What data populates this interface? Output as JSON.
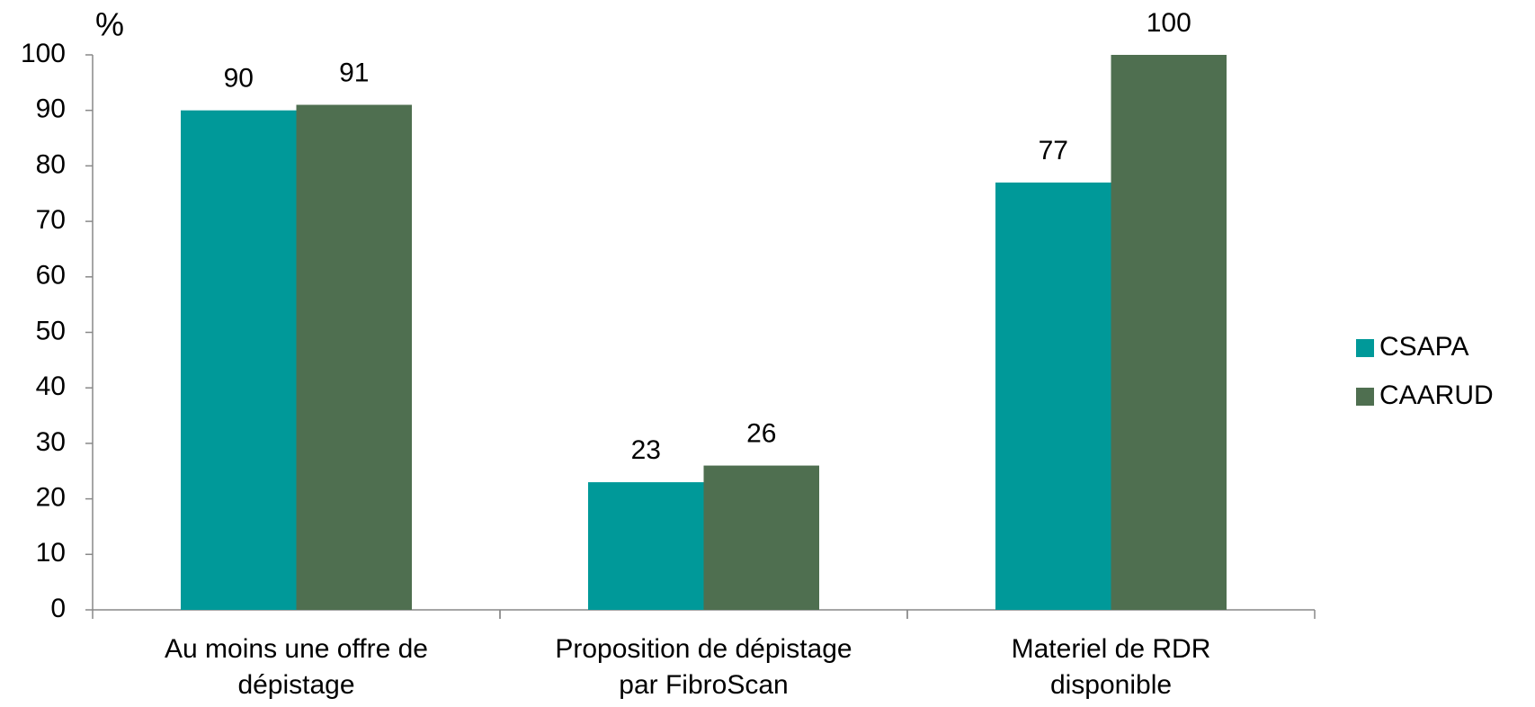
{
  "chart_data": {
    "type": "bar",
    "y_label": "%",
    "categories": [
      [
        "Au moins une offre de",
        "dépistage"
      ],
      [
        "Proposition de dépistage",
        "par FibroScan"
      ],
      [
        "Materiel de RDR",
        "disponible"
      ]
    ],
    "series": [
      {
        "name": "CSAPA",
        "color": "#009999",
        "values": [
          90,
          23,
          77
        ]
      },
      {
        "name": "CAARUD",
        "color": "#4f6f50",
        "values": [
          91,
          26,
          100
        ]
      }
    ],
    "ylim": [
      0,
      100
    ],
    "yticks": [
      0,
      10,
      20,
      30,
      40,
      50,
      60,
      70,
      80,
      90,
      100
    ],
    "legend": "right"
  }
}
